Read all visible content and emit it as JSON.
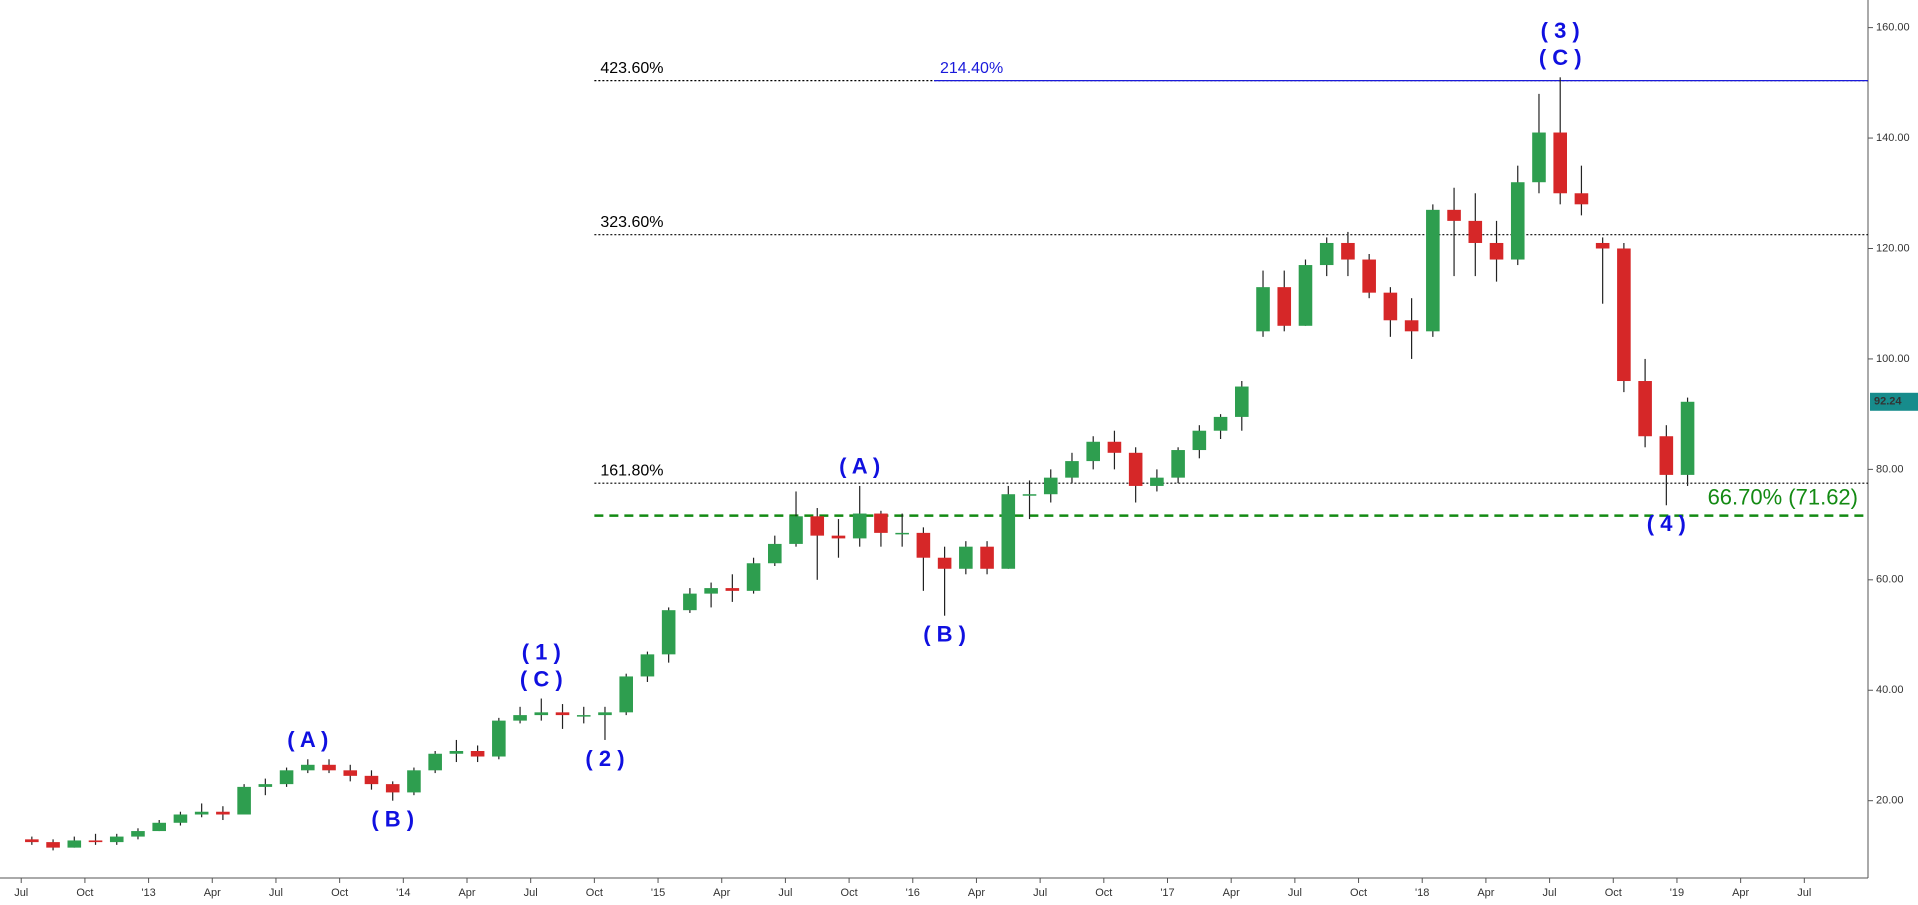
{
  "chart_data": {
    "type": "candlestick",
    "x": [
      "2012-07",
      "2012-08",
      "2012-09",
      "2012-10",
      "2012-11",
      "2012-12",
      "2013-01",
      "2013-02",
      "2013-03",
      "2013-04",
      "2013-05",
      "2013-06",
      "2013-07",
      "2013-08",
      "2013-09",
      "2013-10",
      "2013-11",
      "2013-12",
      "2014-01",
      "2014-02",
      "2014-03",
      "2014-04",
      "2014-05",
      "2014-06",
      "2014-07",
      "2014-08",
      "2014-09",
      "2014-10",
      "2014-11",
      "2014-12",
      "2015-01",
      "2015-02",
      "2015-03",
      "2015-04",
      "2015-05",
      "2015-06",
      "2015-07",
      "2015-08",
      "2015-09",
      "2015-10",
      "2015-11",
      "2015-12",
      "2016-01",
      "2016-02",
      "2016-03",
      "2016-04",
      "2016-05",
      "2016-06",
      "2016-07",
      "2016-08",
      "2016-09",
      "2016-10",
      "2016-11",
      "2016-12",
      "2017-01",
      "2017-02",
      "2017-03",
      "2017-04",
      "2017-05",
      "2017-06",
      "2017-07",
      "2017-08",
      "2017-09",
      "2017-10",
      "2017-11",
      "2017-12",
      "2018-01",
      "2018-02",
      "2018-03",
      "2018-04",
      "2018-05",
      "2018-06",
      "2018-07",
      "2018-08",
      "2018-09",
      "2018-10",
      "2018-11",
      "2018-12",
      "2019-01"
    ],
    "open": [
      13,
      12.5,
      11.5,
      12.8,
      12.5,
      13.5,
      14.5,
      16,
      17.5,
      18,
      17.5,
      22.5,
      23,
      25.5,
      26.5,
      25.5,
      24.5,
      23,
      21.5,
      25.5,
      28.5,
      29,
      28,
      34.5,
      35.5,
      36,
      35.5,
      35.5,
      36,
      42.5,
      46.5,
      54.5,
      57.5,
      58.5,
      58,
      63,
      66.5,
      71.5,
      68,
      67.5,
      72,
      68.5,
      68.5,
      64,
      62,
      66,
      62,
      75.5,
      75.5,
      78.5,
      81.5,
      85,
      83,
      77,
      78.5,
      83.5,
      87,
      89.5,
      105,
      113,
      106,
      117,
      121,
      118,
      112,
      107,
      105,
      127,
      125,
      121,
      118,
      132,
      141,
      130,
      121,
      120,
      96,
      86,
      79
    ],
    "high": [
      13.5,
      13,
      13.5,
      14,
      14,
      15,
      16.5,
      18,
      19.5,
      19,
      23,
      24,
      26,
      27.5,
      27.5,
      26.5,
      25.5,
      23.5,
      26,
      29,
      31,
      30,
      35,
      37,
      38.5,
      37.5,
      37,
      37,
      43,
      47,
      55,
      58.5,
      59.5,
      61,
      64,
      68,
      76,
      73,
      71,
      77,
      72.5,
      72,
      69.5,
      66,
      67,
      67,
      77,
      78,
      80,
      83,
      86,
      87,
      84,
      80,
      84,
      88,
      90,
      96,
      116,
      116,
      118,
      122,
      123,
      119,
      113,
      111,
      128,
      131,
      130,
      125,
      135,
      148,
      151,
      135,
      122,
      121,
      100,
      88,
      93
    ],
    "low": [
      12,
      11,
      11.5,
      12,
      12,
      13,
      14.5,
      15.5,
      17,
      16.5,
      17.5,
      21,
      22.5,
      25,
      25,
      23.5,
      22,
      20,
      21,
      25,
      27,
      27,
      27.5,
      34,
      34.5,
      33,
      34,
      31,
      35.5,
      41.5,
      45,
      54,
      55,
      56,
      57.5,
      62.5,
      66,
      60,
      64,
      66,
      66,
      66,
      58,
      53.5,
      61,
      61,
      62,
      71,
      74,
      77.5,
      80,
      80,
      74,
      76,
      77.5,
      82,
      85.5,
      87,
      104,
      105,
      106,
      115,
      115,
      111,
      104,
      100,
      104,
      115,
      115,
      114,
      117,
      130,
      128,
      126,
      110,
      94,
      84,
      73.5,
      77
    ],
    "close": [
      12.5,
      11.5,
      12.8,
      12.5,
      13.5,
      14.5,
      16,
      17.5,
      18,
      17.5,
      22.5,
      23,
      25.5,
      26.5,
      25.5,
      24.5,
      23,
      21.5,
      25.5,
      28.5,
      29,
      28,
      34.5,
      35.5,
      36,
      35.5,
      35.5,
      36,
      42.5,
      46.5,
      54.5,
      57.5,
      58.5,
      58,
      63,
      66.5,
      71.5,
      68,
      67.5,
      72,
      68.5,
      68.5,
      64,
      62,
      66,
      62,
      75.5,
      75.5,
      78.5,
      81.5,
      85,
      83,
      77,
      78.5,
      83.5,
      87,
      89.5,
      95,
      113,
      106,
      117,
      121,
      118,
      112,
      107,
      105,
      127,
      125,
      121,
      118,
      132,
      141,
      130,
      128,
      120,
      96,
      86,
      79,
      92.24
    ],
    "up_color": "#2e9e4f",
    "down_color": "#d62728",
    "wick_color": "#222",
    "last_price_color": "#178c8c",
    "xlim": [
      "2012-06",
      "2019-10"
    ],
    "xticks": [
      {
        "value": "2012-07",
        "label": "Jul"
      },
      {
        "value": "2012-10",
        "label": "Oct"
      },
      {
        "value": "2013-01",
        "label": "'13"
      },
      {
        "value": "2013-04",
        "label": "Apr"
      },
      {
        "value": "2013-07",
        "label": "Jul"
      },
      {
        "value": "2013-10",
        "label": "Oct"
      },
      {
        "value": "2014-01",
        "label": "'14"
      },
      {
        "value": "2014-04",
        "label": "Apr"
      },
      {
        "value": "2014-07",
        "label": "Jul"
      },
      {
        "value": "2014-10",
        "label": "Oct"
      },
      {
        "value": "2015-01",
        "label": "'15"
      },
      {
        "value": "2015-04",
        "label": "Apr"
      },
      {
        "value": "2015-07",
        "label": "Jul"
      },
      {
        "value": "2015-10",
        "label": "Oct"
      },
      {
        "value": "2016-01",
        "label": "'16"
      },
      {
        "value": "2016-04",
        "label": "Apr"
      },
      {
        "value": "2016-07",
        "label": "Jul"
      },
      {
        "value": "2016-10",
        "label": "Oct"
      },
      {
        "value": "2017-01",
        "label": "'17"
      },
      {
        "value": "2017-04",
        "label": "Apr"
      },
      {
        "value": "2017-07",
        "label": "Jul"
      },
      {
        "value": "2017-10",
        "label": "Oct"
      },
      {
        "value": "2018-01",
        "label": "'18"
      },
      {
        "value": "2018-04",
        "label": "Apr"
      },
      {
        "value": "2018-07",
        "label": "Jul"
      },
      {
        "value": "2018-10",
        "label": "Oct"
      },
      {
        "value": "2019-01",
        "label": "'19"
      },
      {
        "value": "2019-04",
        "label": "Apr"
      },
      {
        "value": "2019-07",
        "label": "Jul"
      }
    ],
    "ylim": [
      6,
      165
    ],
    "yticks": [
      {
        "value": 20,
        "label": "20.00"
      },
      {
        "value": 40,
        "label": "40.00"
      },
      {
        "value": 60,
        "label": "60.00"
      },
      {
        "value": 80,
        "label": "80.00"
      },
      {
        "value": 100,
        "label": "100.00"
      },
      {
        "value": 120,
        "label": "120.00"
      },
      {
        "value": 140,
        "label": "140.00"
      },
      {
        "value": 160,
        "label": "160.00"
      }
    ],
    "levels": [
      {
        "label": "423.60%",
        "value": 150.4,
        "start": "2014-10",
        "color": "#000000",
        "style": "dotted",
        "label_side": "left"
      },
      {
        "label": "214.40%",
        "value": 150.4,
        "start": "2016-02",
        "color": "#1a1adb",
        "style": "solid",
        "label_side": "left"
      },
      {
        "label": "323.60%",
        "value": 122.5,
        "start": "2014-10",
        "color": "#000000",
        "style": "dotted",
        "label_side": "left"
      },
      {
        "label": "161.80%",
        "value": 77.5,
        "start": "2014-10",
        "color": "#000000",
        "style": "dotted",
        "label_side": "left"
      },
      {
        "label": "66.70% (71.62)",
        "value": 71.62,
        "start": "2014-10",
        "color": "#138a13",
        "style": "dashed",
        "label_side": "right"
      }
    ],
    "waves": [
      {
        "lines": [
          "( A )"
        ],
        "x": "2013-08",
        "y": 27.5,
        "placement": "above"
      },
      {
        "lines": [
          "( B )"
        ],
        "x": "2013-12",
        "y": 20,
        "placement": "below"
      },
      {
        "lines": [
          "( 1 )",
          "( C )"
        ],
        "x": "2014-07",
        "y": 38.5,
        "placement": "above"
      },
      {
        "lines": [
          "( 2 )"
        ],
        "x": "2014-10",
        "y": 31,
        "placement": "below"
      },
      {
        "lines": [
          "( A )"
        ],
        "x": "2015-10",
        "y": 77,
        "placement": "above"
      },
      {
        "lines": [
          "( B )"
        ],
        "x": "2016-02",
        "y": 53.5,
        "placement": "below"
      },
      {
        "lines": [
          "( 3 )",
          "( C )"
        ],
        "x": "2018-07",
        "y": 151,
        "placement": "above"
      },
      {
        "lines": [
          "( 4 )"
        ],
        "x": "2018-12",
        "y": 73.5,
        "placement": "below"
      }
    ]
  }
}
